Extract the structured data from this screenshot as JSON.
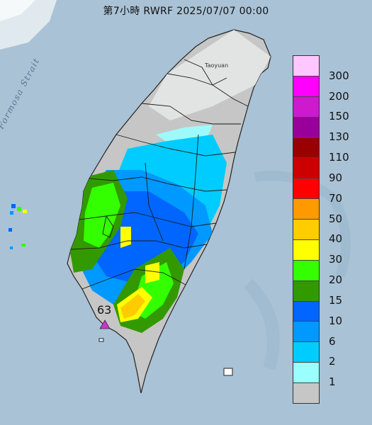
{
  "title": "第7小時  RWRF 2025/07/07 00:00",
  "strait_label": "Formosa Strait",
  "city_label": "Taoyuan",
  "station": {
    "value": "63",
    "color": "#cc33cc"
  },
  "legend": {
    "labels": [
      "300",
      "200",
      "150",
      "130",
      "110",
      "90",
      "70",
      "50",
      "40",
      "30",
      "20",
      "15",
      "10",
      "6",
      "2",
      "1"
    ],
    "colors": [
      "#ffc6ff",
      "#ff00ff",
      "#cc1acc",
      "#990099",
      "#990000",
      "#cc0000",
      "#ff0000",
      "#ff9900",
      "#ffcc00",
      "#ffff00",
      "#33ff00",
      "#339900",
      "#0066ff",
      "#0099ff",
      "#00ccff",
      "#99ffff",
      "#c6c6c6"
    ]
  }
}
